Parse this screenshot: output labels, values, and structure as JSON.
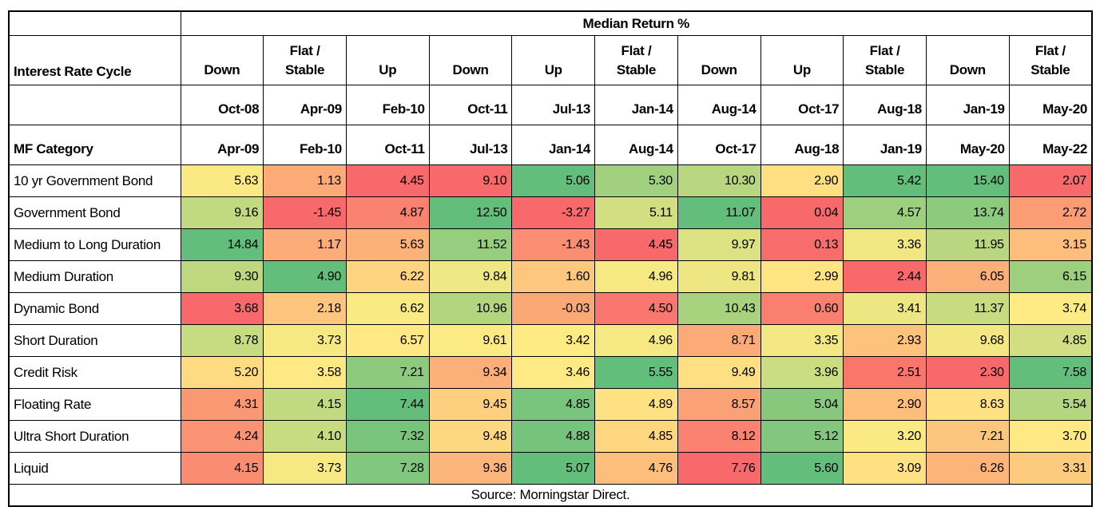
{
  "page": {
    "background": "#FFFFFF"
  },
  "chart_data": {
    "type": "heatmap",
    "title": "Median Return %",
    "col_group_label": "Interest Rate Cycle",
    "row_header_label": "MF Category",
    "columns": [
      {
        "cycle": "Down",
        "start": "Oct-08",
        "end": "Apr-09"
      },
      {
        "cycle": "Flat /\nStable",
        "start": "Apr-09",
        "end": "Feb-10"
      },
      {
        "cycle": "Up",
        "start": "Feb-10",
        "end": "Oct-11"
      },
      {
        "cycle": "Down",
        "start": "Oct-11",
        "end": "Jul-13"
      },
      {
        "cycle": "Up",
        "start": "Jul-13",
        "end": "Jan-14"
      },
      {
        "cycle": "Flat /\nStable",
        "start": "Jan-14",
        "end": "Aug-14"
      },
      {
        "cycle": "Down",
        "start": "Aug-14",
        "end": "Oct-17"
      },
      {
        "cycle": "Up",
        "start": "Oct-17",
        "end": "Aug-18"
      },
      {
        "cycle": "Flat /\nStable",
        "start": "Aug-18",
        "end": "Jan-19"
      },
      {
        "cycle": "Down",
        "start": "Jan-19",
        "end": "May-20"
      },
      {
        "cycle": "Flat /\nStable",
        "start": "May-20",
        "end": "May-22"
      }
    ],
    "rows": [
      {
        "category": "10 yr Government Bond",
        "values": [
          5.63,
          1.13,
          4.45,
          9.1,
          5.06,
          5.3,
          10.3,
          2.9,
          5.42,
          15.4,
          2.07
        ]
      },
      {
        "category": "Government Bond",
        "values": [
          9.16,
          -1.45,
          4.87,
          12.5,
          -3.27,
          5.11,
          11.07,
          0.04,
          4.57,
          13.74,
          2.72
        ]
      },
      {
        "category": "Medium to Long Duration",
        "values": [
          14.84,
          1.17,
          5.63,
          11.52,
          -1.43,
          4.45,
          9.97,
          0.13,
          3.36,
          11.95,
          3.15
        ]
      },
      {
        "category": "Medium Duration",
        "values": [
          9.3,
          4.9,
          6.22,
          9.84,
          1.6,
          4.96,
          9.81,
          2.99,
          2.44,
          6.05,
          6.15
        ]
      },
      {
        "category": "Dynamic Bond",
        "values": [
          3.68,
          2.18,
          6.62,
          10.96,
          -0.03,
          4.5,
          10.43,
          0.6,
          3.41,
          11.37,
          3.74
        ]
      },
      {
        "category": "Short Duration",
        "values": [
          8.78,
          3.73,
          6.57,
          9.61,
          3.42,
          4.96,
          8.71,
          3.35,
          2.93,
          9.68,
          4.85
        ]
      },
      {
        "category": "Credit Risk",
        "values": [
          5.2,
          3.58,
          7.21,
          9.34,
          3.46,
          5.55,
          9.49,
          3.96,
          2.51,
          2.3,
          7.58
        ]
      },
      {
        "category": "Floating Rate",
        "values": [
          4.31,
          4.15,
          7.44,
          9.45,
          4.85,
          4.89,
          8.57,
          5.04,
          2.9,
          8.63,
          5.54
        ]
      },
      {
        "category": "Ultra Short Duration",
        "values": [
          4.24,
          4.1,
          7.32,
          9.48,
          4.88,
          4.85,
          8.12,
          5.12,
          3.2,
          7.21,
          3.7
        ]
      },
      {
        "category": "Liquid",
        "values": [
          4.15,
          3.73,
          7.28,
          9.36,
          5.07,
          4.76,
          7.76,
          5.6,
          3.09,
          6.26,
          3.31
        ]
      }
    ],
    "color_scale": {
      "min_color": "#F8696B",
      "mid_color": "#FFEB84",
      "max_color": "#63BE7B",
      "mode": "per-column 3-color scale, midpoint = 50th percentile"
    },
    "source": "Source: Morningstar Direct.",
    "layout": {
      "grid": "black 1px inner borders, 2px outer border",
      "value_decimals": 2
    }
  }
}
